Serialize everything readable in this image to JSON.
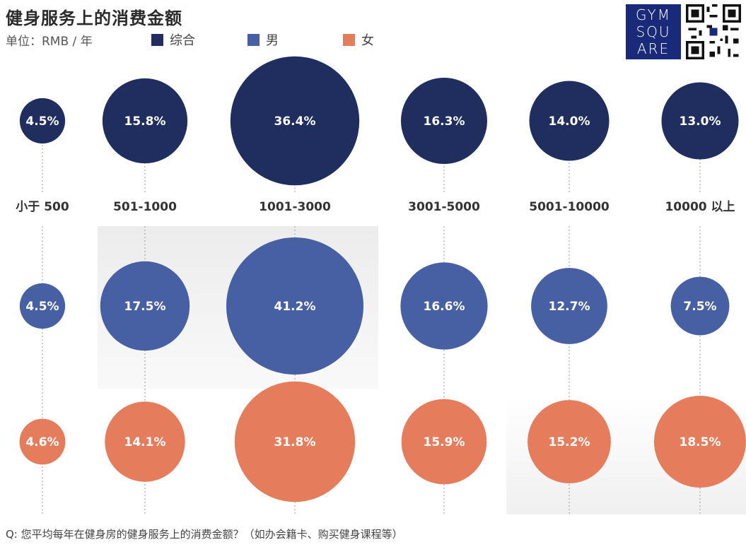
{
  "header": {
    "title": "健身服务上的消费金额",
    "unit": "单位：RMB / 年"
  },
  "brand": {
    "logo_lines": [
      "GYM",
      "SQU",
      "ARE"
    ]
  },
  "footer": {
    "question": "Q: 您平均每年在健身房的健身服务上的消费金额？（如办会籍卡、购买健身课程等）"
  },
  "colors": {
    "total": "#1f2d5f",
    "male": "#4760a3",
    "female": "#e57d5c"
  },
  "chart_data": {
    "type": "bubble",
    "title": "健身服务上的消费金额",
    "unit": "单位：RMB / 年",
    "categories": [
      "小于 500",
      "501-1000",
      "1001-3000",
      "3001-5000",
      "5001-10000",
      "10000 以上"
    ],
    "series": [
      {
        "name": "综合",
        "key": "total",
        "values": [
          4.5,
          15.8,
          36.4,
          16.3,
          14.0,
          13.0
        ],
        "labels": [
          "4.5%",
          "15.8%",
          "36.4%",
          "16.3%",
          "14.0%",
          "13.0%"
        ]
      },
      {
        "name": "男",
        "key": "male",
        "values": [
          4.5,
          17.5,
          41.2,
          16.6,
          12.7,
          7.5
        ],
        "labels": [
          "4.5%",
          "17.5%",
          "41.2%",
          "16.6%",
          "12.7%",
          "7.5%"
        ]
      },
      {
        "name": "女",
        "key": "female",
        "values": [
          4.6,
          14.1,
          31.8,
          15.9,
          15.2,
          18.5
        ],
        "labels": [
          "4.6%",
          "14.1%",
          "31.8%",
          "15.9%",
          "15.2%",
          "18.5%"
        ]
      }
    ]
  }
}
